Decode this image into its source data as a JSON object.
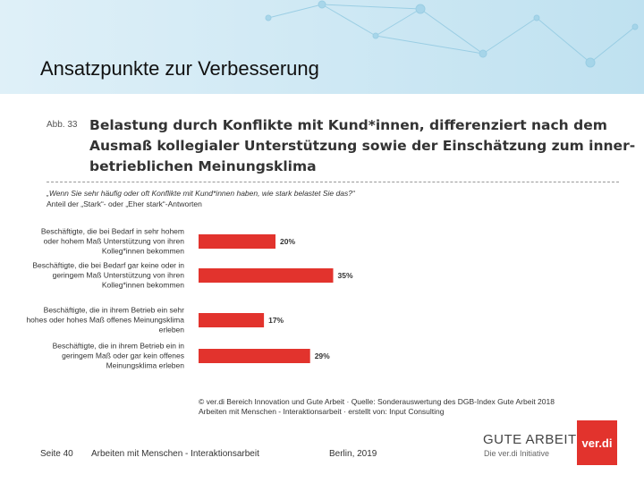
{
  "slide": {
    "title": "Ansatzpunkte zur Verbesserung"
  },
  "chart_data": {
    "type": "bar",
    "orientation": "horizontal",
    "figure_label": "Abb. 33",
    "title": [
      "Belastung durch Konflikte mit Kund*innen, differenziert nach dem",
      "Ausmaß kollegialer Unterstützung sowie der Einschätzung zum inner-",
      "betrieblichen Meinungsklima"
    ],
    "subtitle": [
      "„Wenn Sie sehr häufig oder oft Konflikte mit Kund*innen haben, wie stark belastet Sie das?“",
      "Anteil der „Stark“- oder „Eher stark“-Antworten"
    ],
    "categories": [
      "Beschäftigte, die bei Bedarf in sehr hohem oder hohem Maß Unterstützung von ihren Kolleg*innen bekommen",
      "Beschäftigte, die bei Bedarf gar keine oder in geringem Maß Unterstützung von ihren Kolleg*innen bekommen",
      "Beschäftigte, die in ihrem Betrieb ein sehr hohes oder hohes Maß offenes Meinungsklima erleben",
      "Beschäftigte, die in ihrem Betrieb ein in geringem Maß oder gar kein offenes Meinungsklima erleben"
    ],
    "values": [
      20,
      35,
      17,
      29
    ],
    "value_labels": [
      "20%",
      "35%",
      "17%",
      "29%"
    ],
    "color": "#e2332d",
    "source": [
      "© ver.di Bereich Innovation und Gute Arbeit · Quelle: Sonderauswertung des DGB-Index Gute Arbeit 2018",
      "Arbeiten mit Menschen - Interaktionsarbeit · erstellt von: Input Consulting"
    ]
  },
  "footer": {
    "page": "Seite 40",
    "topic": "Arbeiten mit Menschen - Interaktionsarbeit",
    "place_date": "Berlin, 2019",
    "logo_gute_arbeit": "GUTE ARBEIT",
    "logo_initiative": "Die ver.di Initiative",
    "logo_verdi": "ver.di"
  }
}
